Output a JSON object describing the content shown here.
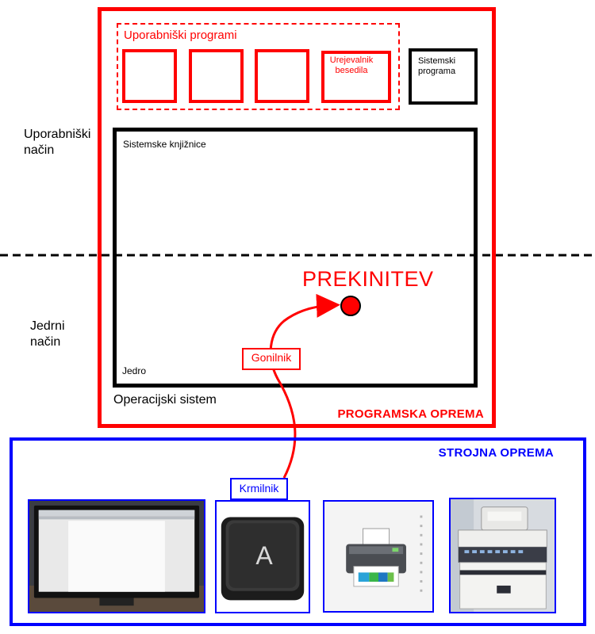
{
  "modes": {
    "user_mode": "Uporabniški\nnačin",
    "kernel_mode": "Jedrni\nnačin"
  },
  "software": {
    "label": "PROGRAMSKA OPREMA",
    "user_programs": {
      "title": "Uporabniški programi",
      "editor": "Urejevalnik\nbesedila"
    },
    "system_programs": "Sistemski\nprograma",
    "system_libraries": "Sistemske knjižnice",
    "kernel": "Jedro",
    "operating_system": "Operacijski sistem",
    "interrupt": "PREKINITEV",
    "driver": "Gonilnik"
  },
  "hardware": {
    "label": "STROJNA OPREMA",
    "controller": "Krmilnik",
    "key_letter": "A",
    "devices": [
      "monitor-icon",
      "keyboard-key-icon",
      "printer-icon",
      "copier-icon"
    ]
  },
  "colors": {
    "software": "#ff0000",
    "hardware": "#0000ff",
    "os": "#000000"
  }
}
